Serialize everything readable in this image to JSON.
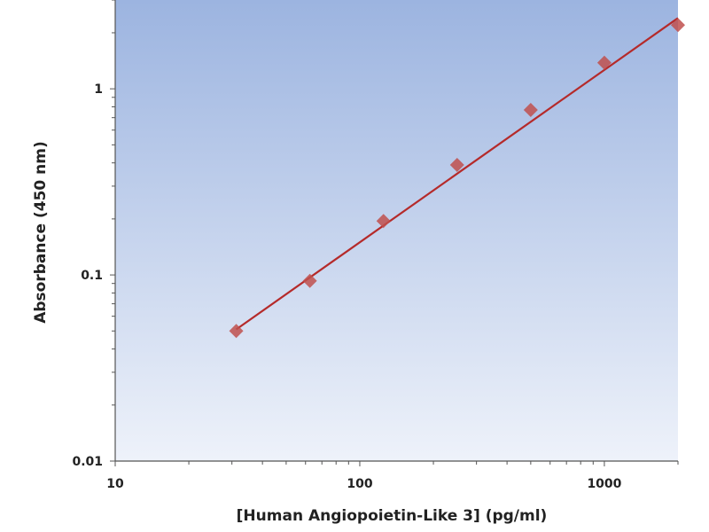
{
  "chart_data": {
    "type": "scatter",
    "title": "",
    "xlabel": "[Human Angiopoietin-Like 3] (pg/ml)",
    "ylabel": "Absorbance (450 nm)",
    "x_scale": "log",
    "y_scale": "log",
    "xlim": [
      10,
      2000
    ],
    "ylim": [
      0.01,
      3
    ],
    "x_ticks": [
      10,
      100,
      1000
    ],
    "x_tick_labels": [
      "10",
      "100",
      "1000"
    ],
    "y_ticks": [
      0.01,
      0.1,
      1
    ],
    "y_tick_labels": [
      "0.01",
      "0.1",
      "1"
    ],
    "grid": false,
    "legend": "none",
    "series": [
      {
        "points": [
          {
            "x": 31.25,
            "y": 0.05
          },
          {
            "x": 62.5,
            "y": 0.093
          },
          {
            "x": 125,
            "y": 0.195
          },
          {
            "x": 250,
            "y": 0.39
          },
          {
            "x": 500,
            "y": 0.77
          },
          {
            "x": 1000,
            "y": 1.38
          },
          {
            "x": 2000,
            "y": 2.2
          }
        ]
      }
    ],
    "fit_line": {
      "type": "linear-log",
      "x_start": 31.25,
      "x_end": 2000,
      "y_start": 0.051,
      "y_end": 2.4
    },
    "colors": {
      "marker": "#c0504d",
      "line": "#b52a2a",
      "bg_top": "#9cb4e0",
      "bg_bottom": "#eef2fa",
      "axis": "#555555"
    }
  }
}
